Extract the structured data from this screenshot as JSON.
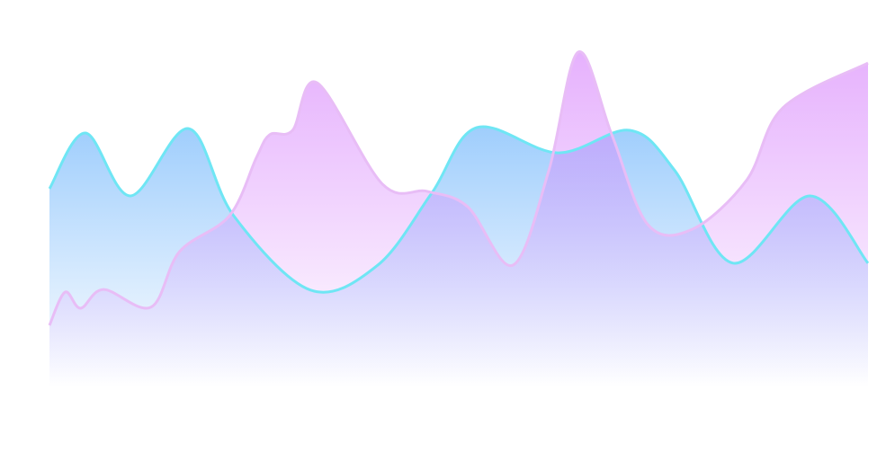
{
  "chart_data": {
    "type": "area",
    "xlim": [
      0,
      100
    ],
    "ylim": [
      0,
      100
    ],
    "series": [
      {
        "color": "#6fe6f4",
        "fill": "#8ec5fc",
        "x": [
          0,
          4.4,
          9.9,
          17.0,
          22.5,
          31.9,
          40.1,
          46.7,
          52.2,
          62.1,
          70.9,
          76.4,
          83.5,
          92.9,
          100
        ],
        "values": [
          57.9,
          74.2,
          55.8,
          75.5,
          50.0,
          28.2,
          35.5,
          56.6,
          75.8,
          68.4,
          75.0,
          63.2,
          36.1,
          55.8,
          36.1
        ]
      },
      {
        "color": "#e8bdf6",
        "fill": "#da8cfc",
        "x": [
          0,
          1.9,
          3.8,
          6.6,
          12.4,
          15.9,
          22.0,
          25.3,
          26.9,
          29.7,
          32.7,
          40.7,
          46.2,
          51.1,
          56.6,
          61.0,
          64.6,
          68.7,
          73.1,
          78.6,
          85.2,
          89.6,
          100
        ],
        "values": [
          17.9,
          27.6,
          22.9,
          28.4,
          23.2,
          39.5,
          50.0,
          67.1,
          73.7,
          75.0,
          88.9,
          59.2,
          57.1,
          52.6,
          35.5,
          63.2,
          97.9,
          73.7,
          47.4,
          46.1,
          60.5,
          81.6,
          94.7
        ]
      }
    ]
  }
}
